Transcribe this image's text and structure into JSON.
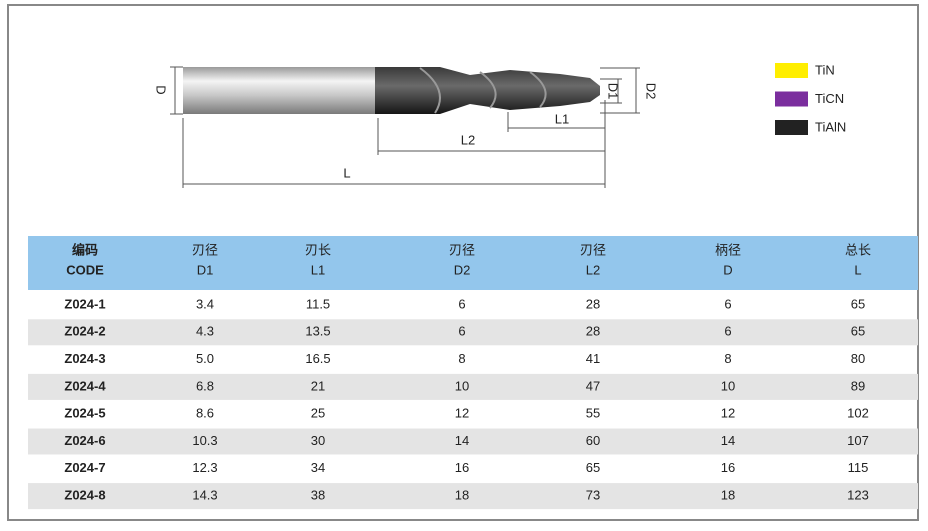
{
  "diagram": {
    "labels": {
      "D": "D",
      "L1": "L1",
      "L2": "L2",
      "L": "L",
      "D1": "D1",
      "D2": "D2"
    }
  },
  "legend": [
    {
      "label": "TiN",
      "color": "#ffee00"
    },
    {
      "label": "TiCN",
      "color": "#7b2e9e"
    },
    {
      "label": "TiAlN",
      "color": "#222222"
    }
  ],
  "table": {
    "header": [
      [
        "编码",
        "CODE"
      ],
      [
        "刃径",
        "D1"
      ],
      [
        "刃长",
        "L1"
      ],
      [
        "刃径",
        "D2"
      ],
      [
        "刃径",
        "L2"
      ],
      [
        "柄径",
        "D"
      ],
      [
        "总长",
        "L"
      ]
    ],
    "rows": [
      [
        "Z024-1",
        "3.4",
        "11.5",
        "6",
        "28",
        "6",
        "65"
      ],
      [
        "Z024-2",
        "4.3",
        "13.5",
        "6",
        "28",
        "6",
        "65"
      ],
      [
        "Z024-3",
        "5.0",
        "16.5",
        "8",
        "41",
        "8",
        "80"
      ],
      [
        "Z024-4",
        "6.8",
        "21",
        "10",
        "47",
        "10",
        "89"
      ],
      [
        "Z024-5",
        "8.6",
        "25",
        "12",
        "55",
        "12",
        "102"
      ],
      [
        "Z024-6",
        "10.3",
        "30",
        "14",
        "60",
        "14",
        "107"
      ],
      [
        "Z024-7",
        "12.3",
        "34",
        "16",
        "65",
        "16",
        "115"
      ],
      [
        "Z024-8",
        "14.3",
        "38",
        "18",
        "73",
        "18",
        "123"
      ]
    ]
  }
}
